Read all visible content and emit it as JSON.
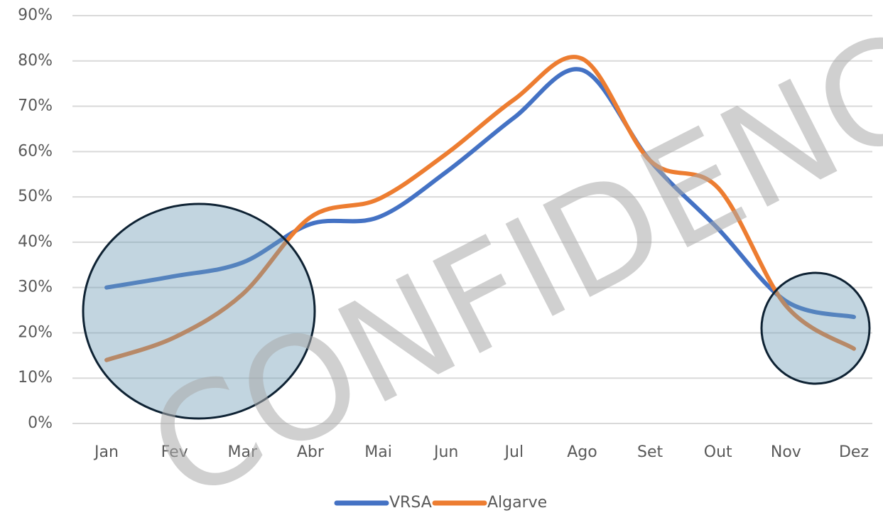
{
  "chart_data": {
    "type": "line",
    "categories": [
      "Jan",
      "Fev",
      "Mar",
      "Abr",
      "Mai",
      "Jun",
      "Jul",
      "Ago",
      "Set",
      "Out",
      "Nov",
      "Dez"
    ],
    "series": [
      {
        "name": "VRSA",
        "color": "#4472c4",
        "values": [
          30,
          32.5,
          35.5,
          44,
          45.5,
          55.5,
          67.5,
          78,
          58,
          43,
          27,
          23.5
        ]
      },
      {
        "name": "Algarve",
        "color": "#ed7d31",
        "values": [
          14,
          19,
          28.5,
          45.5,
          49.5,
          59.5,
          71.5,
          80.5,
          58,
          52,
          26,
          16.5
        ]
      }
    ],
    "ylim": [
      0,
      90
    ],
    "yticks": [
      {
        "value": 0,
        "label": "0%"
      },
      {
        "value": 10,
        "label": "10%"
      },
      {
        "value": 20,
        "label": "20%"
      },
      {
        "value": 30,
        "label": "30%"
      },
      {
        "value": 40,
        "label": "40%"
      },
      {
        "value": 50,
        "label": "50%"
      },
      {
        "value": 60,
        "label": "60%"
      },
      {
        "value": 70,
        "label": "70%"
      },
      {
        "value": 80,
        "label": "80%"
      },
      {
        "value": 90,
        "label": "90%"
      }
    ],
    "grid": true,
    "smooth": true,
    "legend": "bottom",
    "annotations": [
      "CONFIDENC"
    ]
  }
}
